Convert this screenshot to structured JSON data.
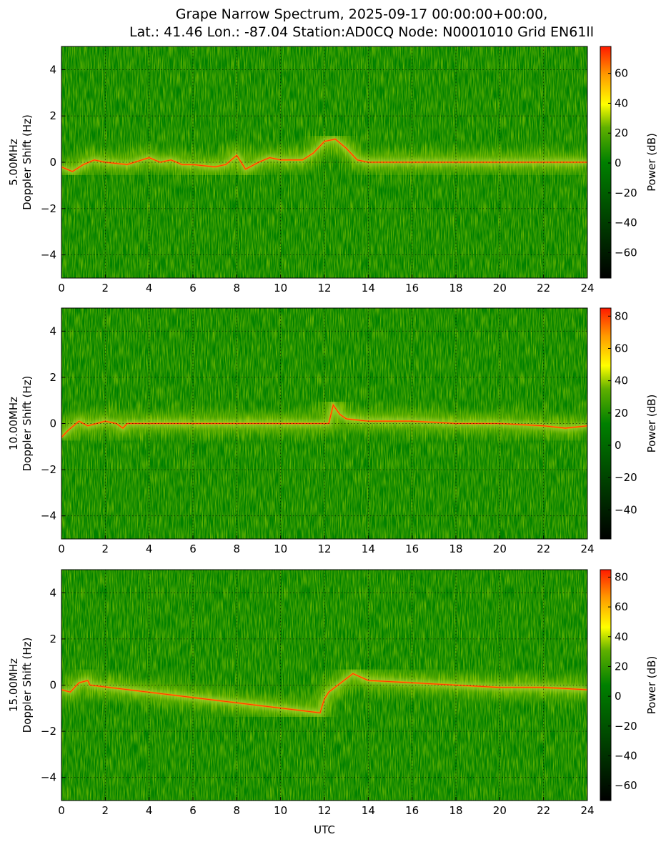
{
  "title_line1": "Grape Narrow Spectrum, 2025-09-17 00:00:00+00:00,",
  "title_line2": "Lat.: 41.46 Lon.: -87.04 Station:AD0CQ Node: N0001010 Grid EN61ll",
  "colors": {
    "background": "#008000",
    "dark": "#002a00",
    "green": "#008000",
    "lime": "#9acd32",
    "yellow": "#ffff00",
    "orange": "#ff8c00",
    "red": "#ff2200",
    "grid": "#000000"
  },
  "chart_data": [
    {
      "type": "heatmap",
      "xlabel": "",
      "ylabel_line1": "5.00MHz",
      "ylabel_line2": "Doppler Shift (Hz)",
      "xlim": [
        0,
        24
      ],
      "ylim": [
        -5,
        5
      ],
      "xticks": [
        0,
        2,
        4,
        6,
        8,
        10,
        12,
        14,
        16,
        18,
        20,
        22,
        24
      ],
      "yticks": [
        -4,
        -2,
        0,
        2,
        4
      ],
      "grid": true,
      "colorbar": {
        "label": "Power (dB)",
        "range": [
          -77,
          78
        ],
        "ticks": [
          -60,
          -40,
          -20,
          0,
          20,
          40,
          60
        ]
      },
      "trace": [
        [
          0,
          -0.2
        ],
        [
          0.5,
          -0.4
        ],
        [
          1,
          -0.1
        ],
        [
          1.5,
          0.1
        ],
        [
          2,
          0.0
        ],
        [
          3,
          -0.1
        ],
        [
          4,
          0.2
        ],
        [
          4.5,
          0.0
        ],
        [
          5,
          0.1
        ],
        [
          5.5,
          -0.1
        ],
        [
          6,
          -0.1
        ],
        [
          7,
          -0.2
        ],
        [
          7.5,
          -0.1
        ],
        [
          8,
          0.3
        ],
        [
          8.4,
          -0.3
        ],
        [
          9,
          0.0
        ],
        [
          9.5,
          0.2
        ],
        [
          10,
          0.1
        ],
        [
          11,
          0.1
        ],
        [
          11.5,
          0.4
        ],
        [
          12,
          0.9
        ],
        [
          12.5,
          1.0
        ],
        [
          13,
          0.6
        ],
        [
          13.5,
          0.1
        ],
        [
          14,
          0.0
        ],
        [
          24,
          0.0
        ]
      ]
    },
    {
      "type": "heatmap",
      "xlabel": "",
      "ylabel_line1": "10.00MHz",
      "ylabel_line2": "Doppler Shift (Hz)",
      "xlim": [
        0,
        24
      ],
      "ylim": [
        -5,
        5
      ],
      "xticks": [
        0,
        2,
        4,
        6,
        8,
        10,
        12,
        14,
        16,
        18,
        20,
        22,
        24
      ],
      "yticks": [
        -4,
        -2,
        0,
        2,
        4
      ],
      "grid": true,
      "colorbar": {
        "label": "Power (dB)",
        "range": [
          -58,
          85
        ],
        "ticks": [
          -40,
          -20,
          0,
          20,
          40,
          60,
          80
        ]
      },
      "trace": [
        [
          0,
          -0.6
        ],
        [
          0.3,
          -0.3
        ],
        [
          0.8,
          0.1
        ],
        [
          1.2,
          -0.1
        ],
        [
          1.6,
          0.0
        ],
        [
          2,
          0.1
        ],
        [
          2.5,
          0.0
        ],
        [
          2.8,
          -0.2
        ],
        [
          3,
          0.0
        ],
        [
          7.5,
          0.0
        ],
        [
          12.2,
          0.0
        ],
        [
          12.4,
          0.8
        ],
        [
          12.7,
          0.4
        ],
        [
          13,
          0.2
        ],
        [
          14,
          0.1
        ],
        [
          16,
          0.1
        ],
        [
          18,
          0.0
        ],
        [
          20,
          0.0
        ],
        [
          22,
          -0.1
        ],
        [
          23,
          -0.2
        ],
        [
          24,
          -0.1
        ]
      ]
    },
    {
      "type": "heatmap",
      "xlabel": "UTC",
      "ylabel_line1": "15.00MHz",
      "ylabel_line2": "Doppler Shift (Hz)",
      "xlim": [
        0,
        24
      ],
      "ylim": [
        -5,
        5
      ],
      "xticks": [
        0,
        2,
        4,
        6,
        8,
        10,
        12,
        14,
        16,
        18,
        20,
        22,
        24
      ],
      "yticks": [
        -4,
        -2,
        0,
        2,
        4
      ],
      "grid": true,
      "colorbar": {
        "label": "Power (dB)",
        "range": [
          -70,
          85
        ],
        "ticks": [
          -60,
          -40,
          -20,
          0,
          20,
          40,
          60,
          80
        ]
      },
      "trace": [
        [
          0,
          -0.2
        ],
        [
          0.4,
          -0.3
        ],
        [
          0.8,
          0.1
        ],
        [
          1.2,
          0.2
        ],
        [
          1.3,
          0.0
        ],
        [
          11.8,
          -1.2
        ],
        [
          12,
          -0.6
        ],
        [
          12.2,
          -0.3
        ],
        [
          13.3,
          0.5
        ],
        [
          14,
          0.2
        ],
        [
          16,
          0.1
        ],
        [
          18,
          0.0
        ],
        [
          20,
          -0.1
        ],
        [
          22,
          -0.1
        ],
        [
          24,
          -0.2
        ]
      ]
    }
  ]
}
